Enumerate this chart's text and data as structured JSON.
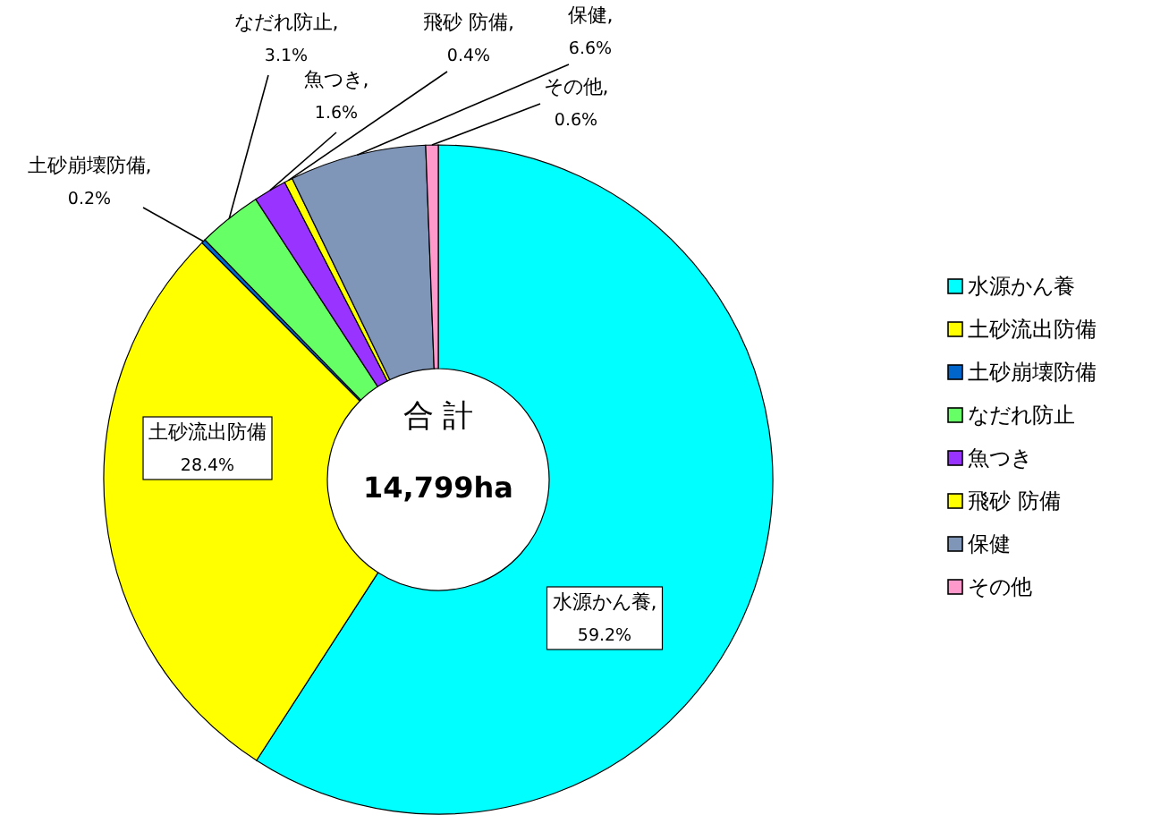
{
  "chart_data": {
    "type": "donut",
    "categories": [
      "水源かん養",
      "土砂流出防備",
      "土砂崩壊防備",
      "なだれ防止",
      "魚つき",
      "飛砂 防備",
      "保健",
      "その他"
    ],
    "values": [
      59.2,
      28.4,
      0.2,
      3.1,
      1.6,
      0.4,
      6.6,
      0.6
    ],
    "colors": [
      "#00ffff",
      "#ffff00",
      "#0066cc",
      "#66ff66",
      "#9933ff",
      "#ffff00",
      "#8096b8",
      "#ff99cc"
    ],
    "value_labels": [
      "水源かん養, 59.2%",
      "土砂流出防備 28.4%",
      "土砂崩壊防備, 0.2%",
      "なだれ防止, 3.1%",
      "魚つき, 1.6%",
      "飛砂 防備, 0.4%",
      "保健, 6.6%",
      "その他, 0.6%"
    ],
    "legend": "right",
    "annotations": [
      "合 計",
      "14,799ha"
    ]
  }
}
